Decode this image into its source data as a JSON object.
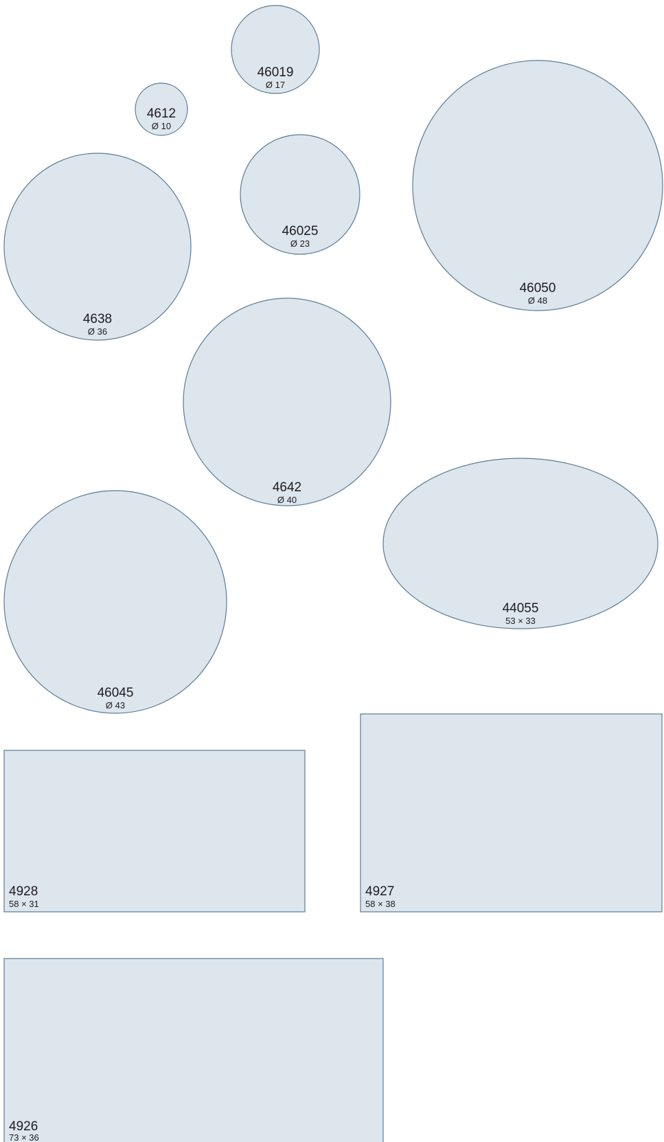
{
  "colors": {
    "shape_fill": "#dde5ed",
    "shape_stroke": "#5b7c94",
    "text": "#1d1d1d",
    "background": "#ffffff"
  },
  "items": {
    "c46019": {
      "id": "46019",
      "dim": "Ø 17"
    },
    "c4612": {
      "id": "4612",
      "dim": "Ø 10"
    },
    "c46025": {
      "id": "46025",
      "dim": "Ø 23"
    },
    "c46050": {
      "id": "46050",
      "dim": "Ø 48"
    },
    "c4638": {
      "id": "4638",
      "dim": "Ø 36"
    },
    "c4642": {
      "id": "4642",
      "dim": "Ø 40"
    },
    "e44055": {
      "id": "44055",
      "dim": "53 × 33"
    },
    "c46045": {
      "id": "46045",
      "dim": "Ø 43"
    },
    "r4928": {
      "id": "4928",
      "dim": "58 × 31"
    },
    "r4927": {
      "id": "4927",
      "dim": "58 × 38"
    },
    "r4926": {
      "id": "4926",
      "dim": "73 × 36"
    }
  }
}
